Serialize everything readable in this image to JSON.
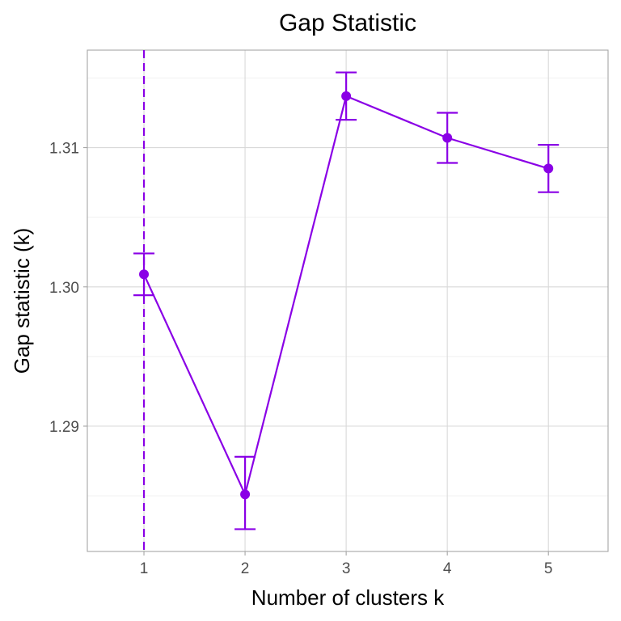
{
  "chart_data": {
    "type": "line",
    "title": "Gap Statistic",
    "xlabel": "Number of clusters k",
    "ylabel": "Gap statistic (k)",
    "x": [
      1,
      2,
      3,
      4,
      5
    ],
    "x_tick_labels": [
      "1",
      "2",
      "3",
      "4",
      "5"
    ],
    "y_ticks": [
      1.29,
      1.3,
      1.31
    ],
    "y_tick_labels": [
      "1.29",
      "1.30",
      "1.31"
    ],
    "xlim": [
      0.44,
      5.59
    ],
    "ylim": [
      1.281,
      1.317
    ],
    "series": [
      {
        "values": [
          1.3009,
          1.2851,
          1.3137,
          1.3107,
          1.3085
        ],
        "error_lower": [
          1.2994,
          1.2826,
          1.312,
          1.3089,
          1.3068
        ],
        "error_upper": [
          1.3024,
          1.2878,
          1.3154,
          1.3125,
          1.3102
        ],
        "color": "#8a00e6"
      }
    ],
    "optimal_k": 1,
    "optimal_k_line_style": "dashed",
    "grid": true,
    "legend": "none"
  }
}
